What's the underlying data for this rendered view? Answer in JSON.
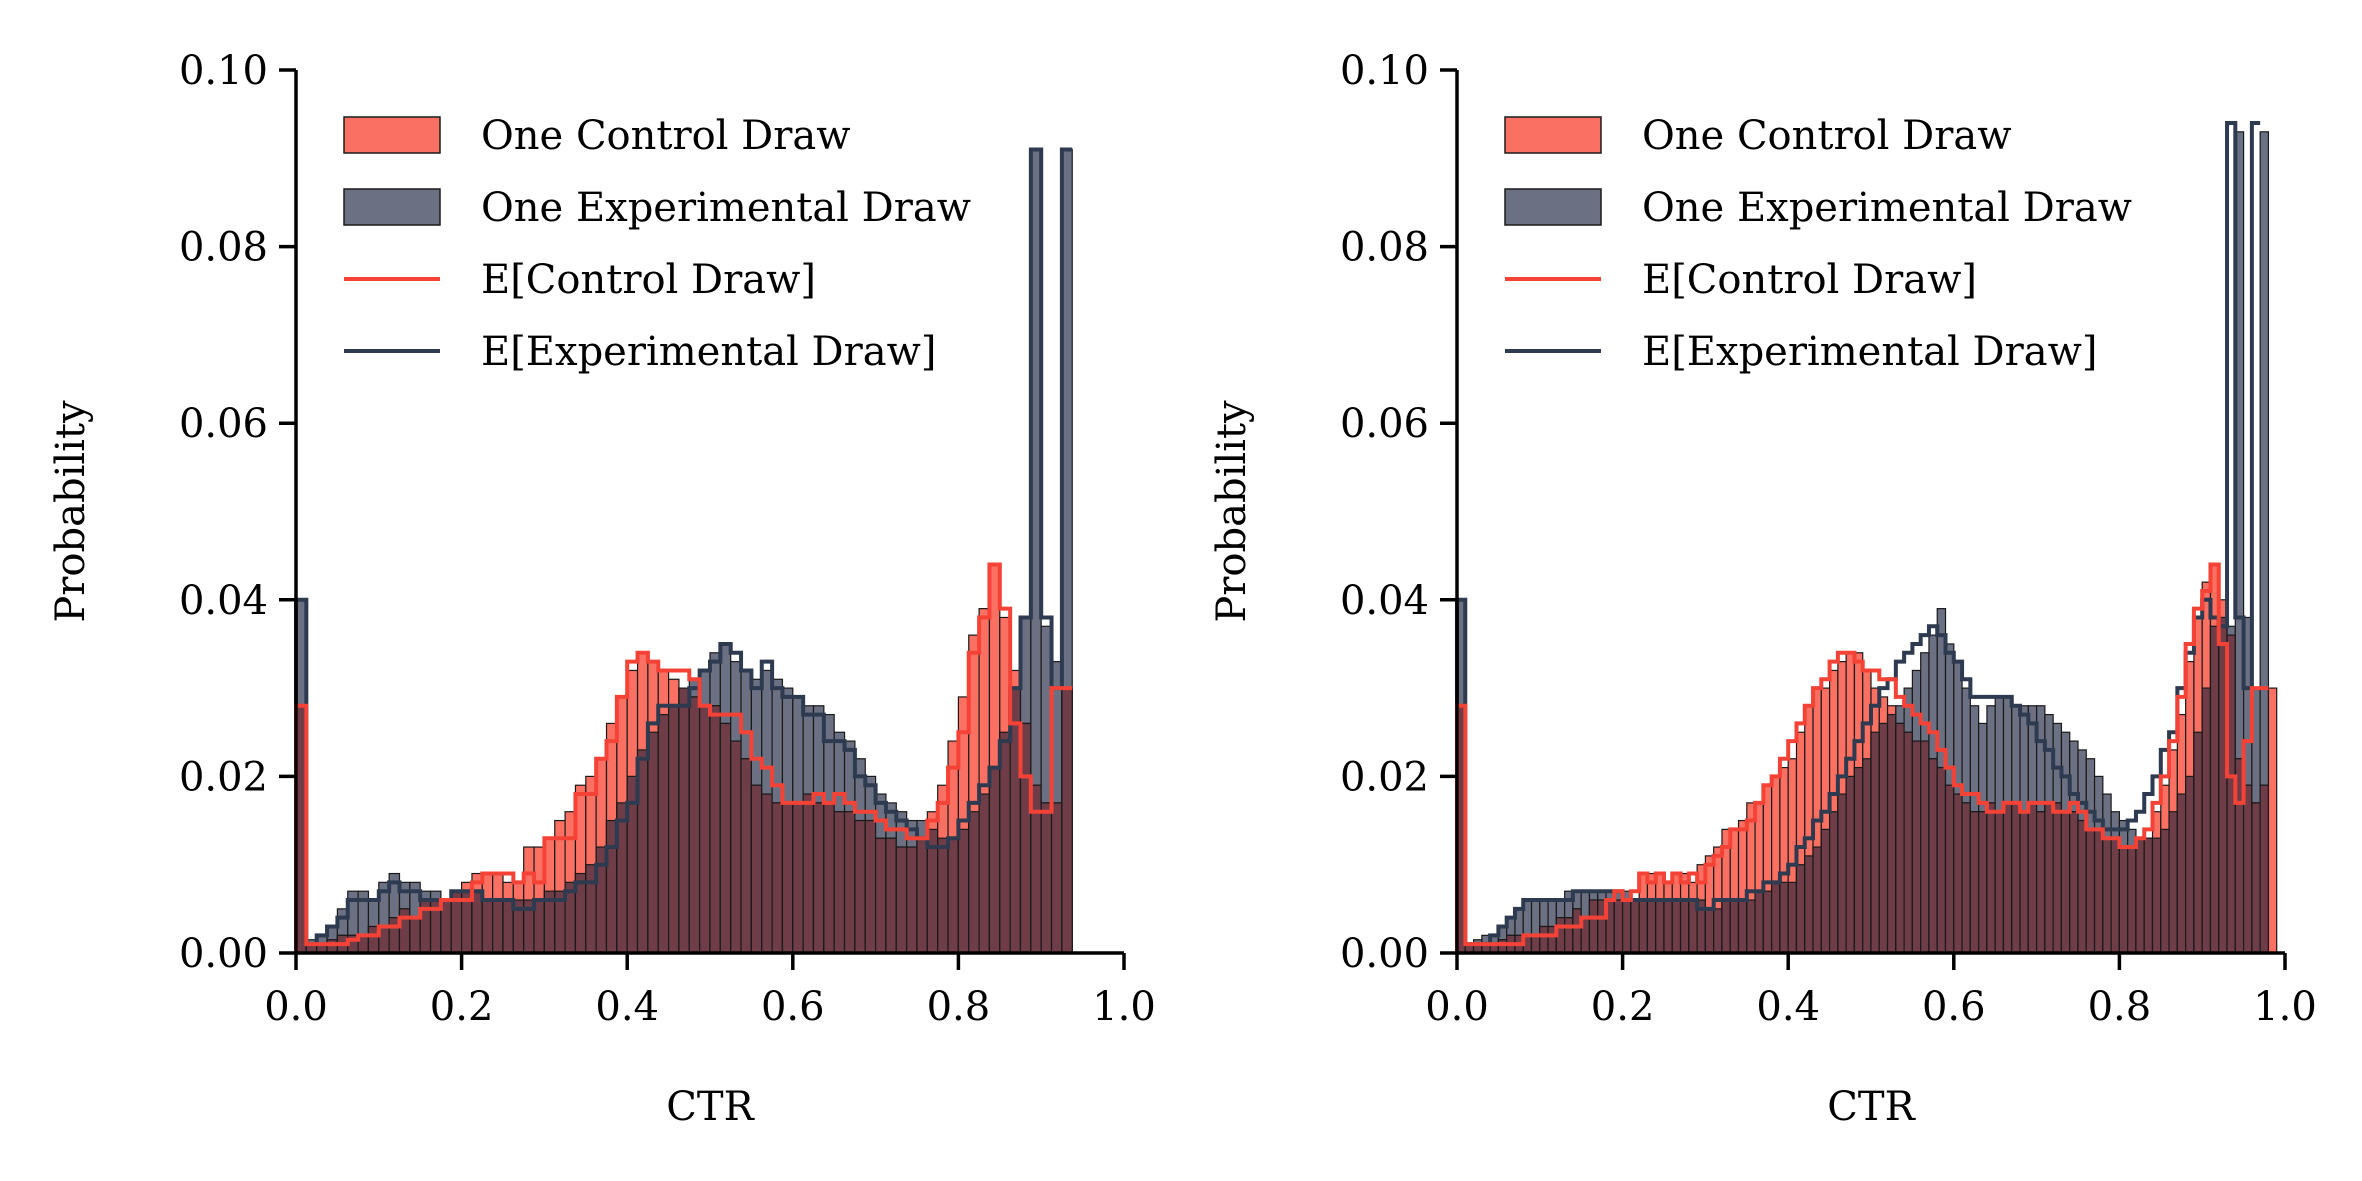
{
  "colors": {
    "control_fill": "#fa7063",
    "control_line": "#f44336",
    "experimental_fill": "#6b7082",
    "experimental_line": "#2d3a4f",
    "overlap_fill": "#6e3d48",
    "bar_edge": "#1a1a1a",
    "axis": "#000000"
  },
  "chart_data": [
    {
      "type": "histogram",
      "xlabel": "CTR",
      "ylabel": "Probability",
      "xlim": [
        0,
        1
      ],
      "ylim": [
        0,
        0.1
      ],
      "xticks": [
        "0.0",
        "0.2",
        "0.4",
        "0.6",
        "0.8",
        "1.0"
      ],
      "yticks": [
        "0.00",
        "0.02",
        "0.04",
        "0.06",
        "0.08",
        "0.10"
      ],
      "grid": false,
      "legend_position": "upper-left",
      "legend": [
        "One Control Draw",
        "One Experimental Draw",
        "E[Control Draw]",
        "E[Experimental Draw]"
      ],
      "bin_width": 0.0125,
      "control_draw": [
        0.028,
        0.001,
        0.001,
        0.0015,
        0.002,
        0.002,
        0.002,
        0.003,
        0.003,
        0.004,
        0.005,
        0.004,
        0.006,
        0.006,
        0.006,
        0.007,
        0.008,
        0.009,
        0.009,
        0.009,
        0.008,
        0.008,
        0.012,
        0.012,
        0.013,
        0.015,
        0.016,
        0.019,
        0.02,
        0.022,
        0.026,
        0.029,
        0.032,
        0.034,
        0.033,
        0.032,
        0.031,
        0.03,
        0.029,
        0.028,
        0.028,
        0.026,
        0.024,
        0.022,
        0.019,
        0.018,
        0.017,
        0.017,
        0.017,
        0.018,
        0.017,
        0.017,
        0.016,
        0.016,
        0.015,
        0.015,
        0.013,
        0.013,
        0.012,
        0.012,
        0.013,
        0.016,
        0.019,
        0.024,
        0.029,
        0.036,
        0.039,
        0.044,
        0.038,
        0.032,
        0.026,
        0.019,
        0.017,
        0.017,
        0.03
      ],
      "experimental_draw": [
        0.04,
        0.0015,
        0.002,
        0.003,
        0.005,
        0.007,
        0.007,
        0.006,
        0.008,
        0.009,
        0.008,
        0.008,
        0.007,
        0.007,
        0.006,
        0.007,
        0.007,
        0.007,
        0.006,
        0.006,
        0.006,
        0.006,
        0.006,
        0.006,
        0.007,
        0.007,
        0.008,
        0.009,
        0.01,
        0.012,
        0.015,
        0.017,
        0.02,
        0.023,
        0.025,
        0.027,
        0.028,
        0.03,
        0.031,
        0.032,
        0.034,
        0.035,
        0.033,
        0.032,
        0.031,
        0.032,
        0.031,
        0.03,
        0.029,
        0.028,
        0.028,
        0.027,
        0.025,
        0.024,
        0.022,
        0.02,
        0.018,
        0.017,
        0.016,
        0.015,
        0.015,
        0.014,
        0.013,
        0.013,
        0.014,
        0.016,
        0.018,
        0.021,
        0.025,
        0.03,
        0.038,
        0.091,
        0.037,
        0.033,
        0.091
      ],
      "expected_control": [
        0.028,
        0.001,
        0.001,
        0.001,
        0.001,
        0.0015,
        0.002,
        0.002,
        0.003,
        0.003,
        0.004,
        0.004,
        0.005,
        0.005,
        0.006,
        0.006,
        0.006,
        0.008,
        0.009,
        0.009,
        0.009,
        0.008,
        0.009,
        0.008,
        0.013,
        0.013,
        0.013,
        0.018,
        0.018,
        0.022,
        0.024,
        0.029,
        0.033,
        0.034,
        0.033,
        0.032,
        0.032,
        0.032,
        0.031,
        0.028,
        0.027,
        0.027,
        0.027,
        0.025,
        0.022,
        0.021,
        0.019,
        0.017,
        0.017,
        0.017,
        0.018,
        0.017,
        0.018,
        0.017,
        0.016,
        0.016,
        0.015,
        0.014,
        0.014,
        0.013,
        0.013,
        0.015,
        0.017,
        0.021,
        0.025,
        0.034,
        0.038,
        0.044,
        0.039,
        0.026,
        0.02,
        0.016,
        0.016,
        0.03,
        0.03
      ],
      "expected_experimental": [
        0.04,
        0.001,
        0.002,
        0.003,
        0.004,
        0.006,
        0.006,
        0.006,
        0.007,
        0.008,
        0.007,
        0.007,
        0.006,
        0.006,
        0.006,
        0.007,
        0.007,
        0.007,
        0.006,
        0.006,
        0.006,
        0.005,
        0.005,
        0.006,
        0.006,
        0.006,
        0.007,
        0.008,
        0.008,
        0.01,
        0.012,
        0.015,
        0.017,
        0.022,
        0.026,
        0.028,
        0.028,
        0.028,
        0.03,
        0.032,
        0.033,
        0.035,
        0.034,
        0.032,
        0.03,
        0.033,
        0.03,
        0.029,
        0.029,
        0.027,
        0.027,
        0.024,
        0.024,
        0.023,
        0.02,
        0.019,
        0.017,
        0.016,
        0.015,
        0.014,
        0.013,
        0.012,
        0.012,
        0.013,
        0.015,
        0.017,
        0.019,
        0.021,
        0.024,
        0.03,
        0.038,
        0.091,
        0.038,
        0.03,
        0.091
      ]
    },
    {
      "type": "histogram",
      "xlabel": "CTR",
      "ylabel": "Probability",
      "xlim": [
        0,
        1
      ],
      "ylim": [
        0,
        0.1
      ],
      "xticks": [
        "0.0",
        "0.2",
        "0.4",
        "0.6",
        "0.8",
        "1.0"
      ],
      "yticks": [
        "0.00",
        "0.02",
        "0.04",
        "0.06",
        "0.08",
        "0.10"
      ],
      "grid": false,
      "legend_position": "upper-left",
      "legend": [
        "One Control Draw",
        "One Experimental Draw",
        "E[Control Draw]",
        "E[Experimental Draw]"
      ],
      "bin_width": 0.01,
      "control_draw": [
        0.028,
        0.001,
        0.001,
        0.001,
        0.001,
        0.0015,
        0.002,
        0.002,
        0.002,
        0.002,
        0.003,
        0.003,
        0.004,
        0.004,
        0.005,
        0.004,
        0.006,
        0.006,
        0.006,
        0.006,
        0.006,
        0.006,
        0.009,
        0.009,
        0.009,
        0.008,
        0.009,
        0.009,
        0.008,
        0.01,
        0.011,
        0.012,
        0.014,
        0.014,
        0.015,
        0.017,
        0.017,
        0.019,
        0.02,
        0.021,
        0.022,
        0.025,
        0.028,
        0.03,
        0.03,
        0.032,
        0.033,
        0.034,
        0.034,
        0.032,
        0.03,
        0.029,
        0.028,
        0.026,
        0.025,
        0.024,
        0.024,
        0.022,
        0.021,
        0.019,
        0.018,
        0.017,
        0.016,
        0.016,
        0.017,
        0.016,
        0.017,
        0.017,
        0.016,
        0.017,
        0.016,
        0.017,
        0.017,
        0.016,
        0.016,
        0.015,
        0.014,
        0.014,
        0.013,
        0.013,
        0.012,
        0.012,
        0.013,
        0.013,
        0.016,
        0.019,
        0.023,
        0.027,
        0.033,
        0.038,
        0.042,
        0.044,
        0.04,
        0.036,
        0.022,
        0.019,
        0.017,
        0.019,
        0.03
      ],
      "experimental_draw": [
        0.04,
        0.001,
        0.0015,
        0.002,
        0.002,
        0.003,
        0.004,
        0.005,
        0.006,
        0.006,
        0.006,
        0.006,
        0.006,
        0.007,
        0.007,
        0.007,
        0.007,
        0.007,
        0.007,
        0.007,
        0.007,
        0.006,
        0.006,
        0.006,
        0.006,
        0.006,
        0.006,
        0.006,
        0.006,
        0.006,
        0.005,
        0.005,
        0.006,
        0.006,
        0.006,
        0.006,
        0.007,
        0.007,
        0.008,
        0.008,
        0.008,
        0.01,
        0.011,
        0.012,
        0.014,
        0.016,
        0.018,
        0.02,
        0.021,
        0.022,
        0.025,
        0.026,
        0.027,
        0.028,
        0.03,
        0.032,
        0.034,
        0.036,
        0.039,
        0.035,
        0.033,
        0.03,
        0.028,
        0.026,
        0.028,
        0.029,
        0.029,
        0.028,
        0.028,
        0.028,
        0.028,
        0.027,
        0.026,
        0.025,
        0.024,
        0.023,
        0.022,
        0.02,
        0.018,
        0.016,
        0.015,
        0.014,
        0.013,
        0.013,
        0.013,
        0.014,
        0.016,
        0.018,
        0.02,
        0.025,
        0.03,
        0.037,
        0.038,
        0.037,
        0.093,
        0.038,
        0.03,
        0.093
      ],
      "expected_control": [
        0.028,
        0.001,
        0.001,
        0.001,
        0.001,
        0.001,
        0.001,
        0.001,
        0.002,
        0.002,
        0.002,
        0.002,
        0.003,
        0.003,
        0.003,
        0.004,
        0.004,
        0.004,
        0.006,
        0.007,
        0.006,
        0.007,
        0.009,
        0.008,
        0.009,
        0.008,
        0.009,
        0.008,
        0.009,
        0.008,
        0.01,
        0.011,
        0.012,
        0.014,
        0.014,
        0.015,
        0.017,
        0.019,
        0.02,
        0.022,
        0.024,
        0.026,
        0.028,
        0.03,
        0.031,
        0.033,
        0.034,
        0.034,
        0.033,
        0.032,
        0.032,
        0.031,
        0.031,
        0.029,
        0.028,
        0.027,
        0.026,
        0.025,
        0.023,
        0.021,
        0.019,
        0.018,
        0.018,
        0.017,
        0.016,
        0.016,
        0.017,
        0.017,
        0.016,
        0.017,
        0.017,
        0.017,
        0.016,
        0.016,
        0.017,
        0.016,
        0.014,
        0.014,
        0.013,
        0.013,
        0.012,
        0.012,
        0.013,
        0.014,
        0.017,
        0.02,
        0.024,
        0.029,
        0.035,
        0.039,
        0.041,
        0.044,
        0.035,
        0.02,
        0.017,
        0.024,
        0.03,
        0.03
      ],
      "expected_experimental": [
        0.04,
        0.001,
        0.001,
        0.001,
        0.002,
        0.003,
        0.004,
        0.005,
        0.006,
        0.006,
        0.006,
        0.006,
        0.006,
        0.006,
        0.007,
        0.007,
        0.007,
        0.007,
        0.007,
        0.007,
        0.006,
        0.006,
        0.006,
        0.006,
        0.006,
        0.006,
        0.006,
        0.006,
        0.006,
        0.005,
        0.005,
        0.006,
        0.006,
        0.006,
        0.006,
        0.007,
        0.007,
        0.008,
        0.008,
        0.009,
        0.01,
        0.012,
        0.013,
        0.015,
        0.016,
        0.018,
        0.02,
        0.022,
        0.024,
        0.026,
        0.028,
        0.03,
        0.031,
        0.033,
        0.034,
        0.035,
        0.036,
        0.037,
        0.036,
        0.034,
        0.033,
        0.031,
        0.029,
        0.029,
        0.029,
        0.029,
        0.029,
        0.028,
        0.027,
        0.026,
        0.024,
        0.023,
        0.021,
        0.02,
        0.018,
        0.017,
        0.016,
        0.015,
        0.014,
        0.014,
        0.014,
        0.015,
        0.016,
        0.018,
        0.02,
        0.023,
        0.025,
        0.03,
        0.034,
        0.038,
        0.04,
        0.038,
        0.037,
        0.094,
        0.038,
        0.03,
        0.094
      ]
    }
  ]
}
